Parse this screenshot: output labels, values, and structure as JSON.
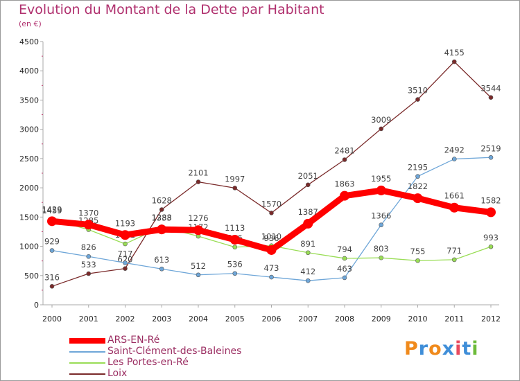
{
  "chart_data": {
    "type": "line",
    "title": "Evolution du Montant de la Dette par Habitant",
    "subtitle": "(en €)",
    "x": [
      "2000",
      "2001",
      "2002",
      "2003",
      "2004",
      "2005",
      "2006",
      "2007",
      "2008",
      "2009",
      "2010",
      "2011",
      "2012"
    ],
    "yticks": [
      "0",
      "500",
      "1000",
      "1500",
      "2000",
      "2500",
      "3000",
      "3500",
      "4000",
      "4500"
    ],
    "ylim": [
      0,
      4500
    ],
    "grid": false,
    "legend_position": "bottom-left",
    "series": [
      {
        "name": "ARS-EN-Ré",
        "color": "#ff0000",
        "values": [
          1429,
          1370,
          1193,
          1288,
          1276,
          1113,
          936,
          1387,
          1863,
          1955,
          1822,
          1661,
          1582
        ]
      },
      {
        "name": "Saint-Clément-des-Baleines",
        "color": "#6ea6d8",
        "values": [
          929,
          826,
          717,
          613,
          512,
          536,
          473,
          412,
          463,
          1366,
          2195,
          2492,
          2519
        ]
      },
      {
        "name": "Les Portes-en-Ré",
        "color": "#99dd55",
        "values": [
          1459,
          1285,
          1041,
          1333,
          1172,
          986,
          1010,
          891,
          794,
          803,
          755,
          771,
          993
        ]
      },
      {
        "name": "Loix",
        "color": "#7a2a2a",
        "values": [
          316,
          533,
          620,
          1628,
          2101,
          1997,
          1570,
          2051,
          2481,
          3009,
          3510,
          4155,
          3544
        ]
      }
    ]
  },
  "brand": {
    "letters": [
      "P",
      "r",
      "o",
      "x",
      "i",
      "t",
      "i"
    ]
  },
  "colors": {
    "title": "#b0306e",
    "brand": [
      "#f08a1c",
      "#3f8ed8",
      "#f08a1c",
      "#3f8ed8",
      "#e84a5f",
      "#3f8ed8",
      "#6dbb3a"
    ]
  }
}
